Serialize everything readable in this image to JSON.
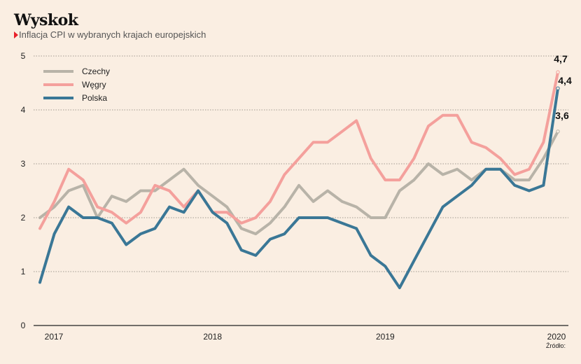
{
  "header": {
    "title": "Wyskok",
    "subtitle": "Inflacja CPI w wybranych krajach europejskich"
  },
  "footer": {
    "source": "Źródło:"
  },
  "chart_data": {
    "type": "line",
    "title": "Wyskok",
    "subtitle": "Inflacja CPI w wybranych krajach europejskich",
    "xlabel": "",
    "ylabel": "",
    "ylim": [
      0,
      5
    ],
    "yticks": [
      "0",
      "1",
      "2",
      "3",
      "4",
      "5"
    ],
    "xtick_labels": [
      "2017",
      "2018",
      "2019",
      "2020"
    ],
    "x_start": "2017-01",
    "x_end": "2020-01",
    "grid": true,
    "legend": "top-left",
    "series": [
      {
        "name": "Czechy",
        "color": "#b8b3a8",
        "end_label": "3,6",
        "values": [
          2.0,
          2.2,
          2.5,
          2.6,
          2.0,
          2.4,
          2.3,
          2.5,
          2.5,
          2.7,
          2.9,
          2.6,
          2.4,
          2.2,
          1.8,
          1.7,
          1.9,
          2.2,
          2.6,
          2.3,
          2.5,
          2.3,
          2.2,
          2.0,
          2.0,
          2.5,
          2.7,
          3.0,
          2.8,
          2.9,
          2.7,
          2.9,
          2.9,
          2.7,
          2.7,
          3.1,
          3.6
        ]
      },
      {
        "name": "Węgry",
        "color": "#f4a09c",
        "end_label": "4,7",
        "values": [
          1.8,
          2.3,
          2.9,
          2.7,
          2.2,
          2.1,
          1.9,
          2.1,
          2.6,
          2.5,
          2.2,
          2.5,
          2.1,
          2.1,
          1.9,
          2.0,
          2.3,
          2.8,
          3.1,
          3.4,
          3.4,
          3.6,
          3.8,
          3.1,
          2.7,
          2.7,
          3.1,
          3.7,
          3.9,
          3.9,
          3.4,
          3.3,
          3.1,
          2.8,
          2.9,
          3.4,
          4.7
        ]
      },
      {
        "name": "Polska",
        "color": "#3a7796",
        "end_label": "4,4",
        "values": [
          0.8,
          1.7,
          2.2,
          2.0,
          2.0,
          1.9,
          1.5,
          1.7,
          1.8,
          2.2,
          2.1,
          2.5,
          2.1,
          1.9,
          1.4,
          1.3,
          1.6,
          1.7,
          2.0,
          2.0,
          2.0,
          1.9,
          1.8,
          1.3,
          1.1,
          0.7,
          1.2,
          1.7,
          2.2,
          2.4,
          2.6,
          2.9,
          2.9,
          2.6,
          2.5,
          2.6,
          4.4
        ]
      }
    ]
  }
}
